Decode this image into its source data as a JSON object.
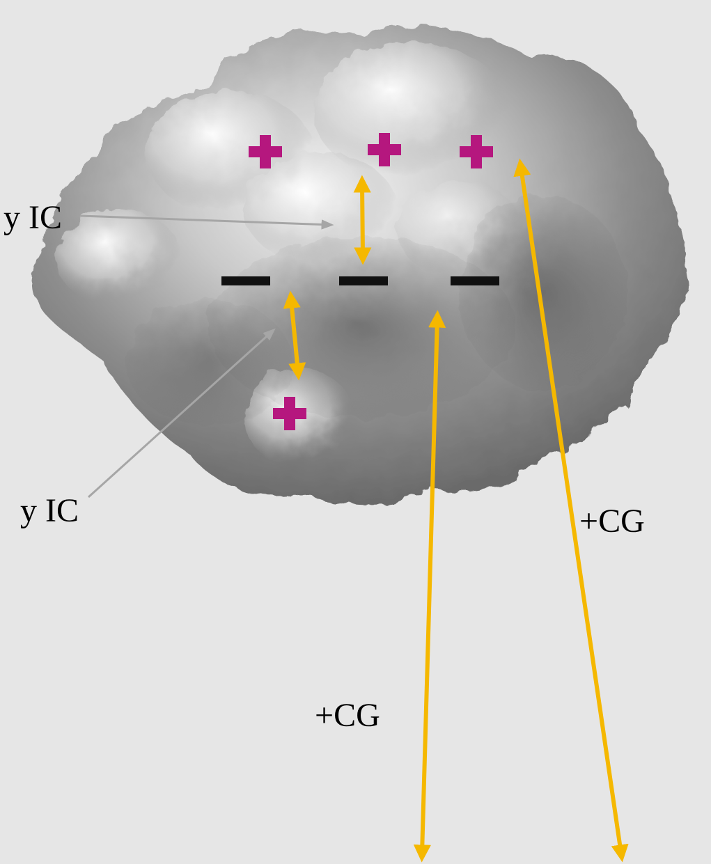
{
  "labels": {
    "upper_ic": "y IC",
    "lower_ic": "y IC",
    "cg_right": "+CG",
    "cg_center": "+CG"
  },
  "charges": {
    "positive_symbol": "+",
    "negative_symbol": "−"
  },
  "colors": {
    "background": "#e6e6e6",
    "positive_charge": "#b5177e",
    "negative_charge": "#111111",
    "discharge_arrow": "#f5b800",
    "pointer_arrow": "#a6a6a6"
  },
  "icons": {
    "cloud": "cumulonimbus-cloud",
    "positive": "plus-icon",
    "negative": "minus-icon"
  }
}
